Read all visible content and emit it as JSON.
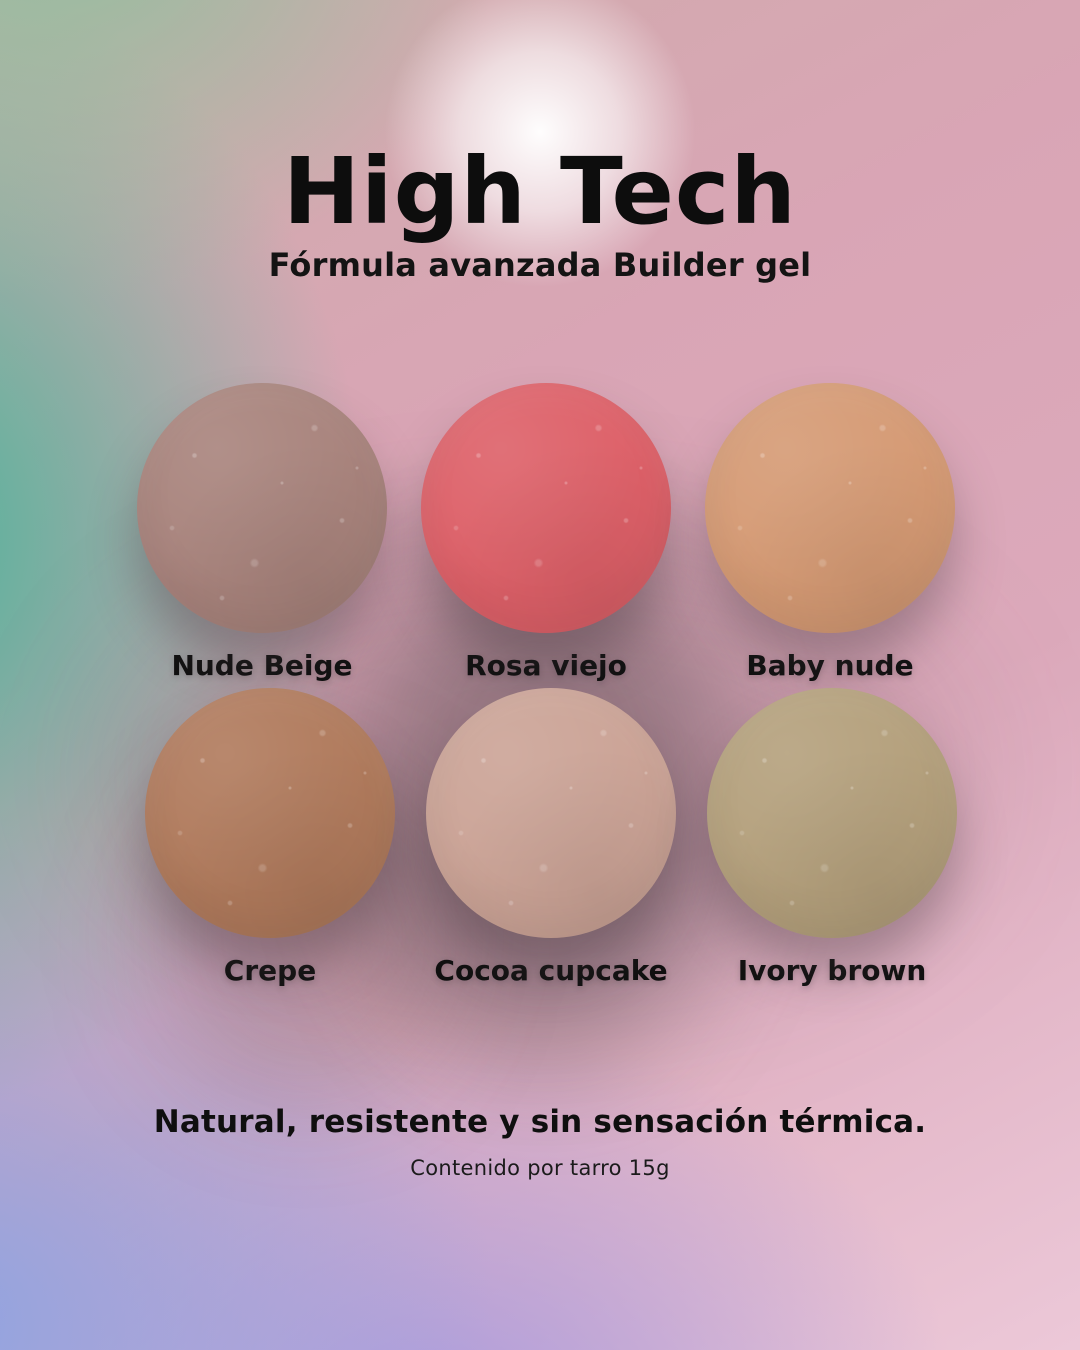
{
  "header": {
    "title": "High Tech",
    "subtitle": "Fórmula avanzada Builder gel"
  },
  "swatches": {
    "items": [
      {
        "label": "Nude Beige",
        "color": "#a8837c"
      },
      {
        "label": "Rosa viejo",
        "color": "#dd6068"
      },
      {
        "label": "Baby nude",
        "color": "#d59a74"
      },
      {
        "label": "Crepe",
        "color": "#b07a5c"
      },
      {
        "label": "Cocoa cupcake",
        "color": "#cba396"
      },
      {
        "label": "Ivory brown",
        "color": "#b4a07c"
      }
    ]
  },
  "footer": {
    "headline": "Natural, resistente y sin sensación térmica.",
    "note": "Contenido por tarro 15g"
  },
  "background": {
    "green_top_left": "#8fbf9e",
    "teal_left": "#46b498",
    "pink_base": "#d9a5b5",
    "pink_bottom_right": "#ecc8d8",
    "periwinkle_bottom_left": "#8ca2e2",
    "lavender_bottom": "#a799dd",
    "glow": "#ffffff"
  }
}
